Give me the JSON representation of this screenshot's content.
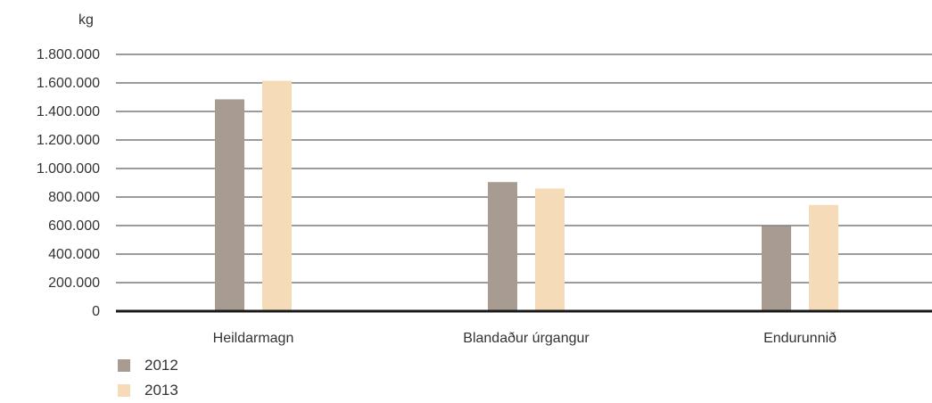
{
  "chart_data": {
    "type": "bar",
    "title": "",
    "unit_label": "kg",
    "categories": [
      "Heildarmagn",
      "Blandaður úrgangur",
      "Endurunnið"
    ],
    "series": [
      {
        "name": "2012",
        "color": "#a89c92",
        "values": [
          1485000,
          905000,
          595000
        ]
      },
      {
        "name": "2013",
        "color": "#f6dbb8",
        "values": [
          1615000,
          860000,
          745000
        ]
      }
    ],
    "ylim": [
      0,
      1800000
    ],
    "yticks": [
      0,
      200000,
      400000,
      600000,
      800000,
      1000000,
      1200000,
      1400000,
      1600000,
      1800000
    ],
    "ytick_labels": [
      "0",
      "200.000",
      "400.000",
      "600.000",
      "800.000",
      "1.000.000",
      "1.200.000",
      "1.400.000",
      "1.600.000",
      "1.800.000"
    ],
    "grid": true,
    "legend_position": "bottom-left"
  }
}
